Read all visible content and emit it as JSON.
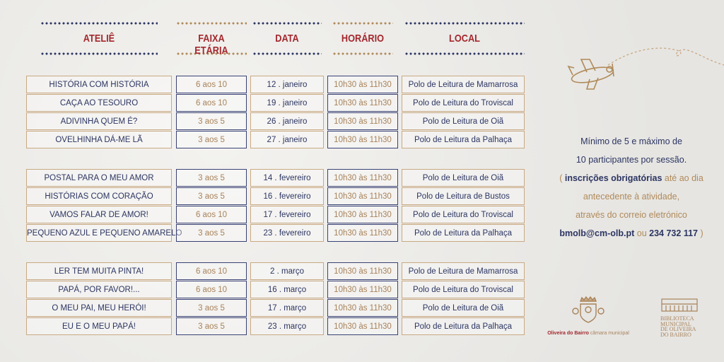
{
  "headers": [
    "ATELIÊ",
    "FAIXA ETÁRIA",
    "DATA",
    "HORÁRIO",
    "LOCAL"
  ],
  "colors": {
    "navy": "#2c3562",
    "gold": "#b08a5a",
    "red": "#a3282e"
  },
  "groups": [
    [
      [
        "HISTÓRIA COM HISTÓRIA",
        "6 aos 10",
        "12 . janeiro",
        "10h30 às 11h30",
        "Polo de Leitura de Mamarrosa"
      ],
      [
        "CAÇA AO TESOURO",
        "6 aos 10",
        "19 . janeiro",
        "10h30 às 11h30",
        "Polo de Leitura do Troviscal"
      ],
      [
        "ADIVINHA QUEM É?",
        "3 aos 5",
        "26 . janeiro",
        "10h30 às 11h30",
        "Polo de Leitura de Oiã"
      ],
      [
        "OVELHINHA DÁ-ME LÃ",
        "3 aos 5",
        "27 . janeiro",
        "10h30 às 11h30",
        "Polo de Leitura da Palhaça"
      ]
    ],
    [
      [
        "POSTAL PARA O MEU AMOR",
        "3 aos 5",
        "14 . fevereiro",
        "10h30 às 11h30",
        "Polo de Leitura de Oiã"
      ],
      [
        "HISTÓRIAS COM CORAÇÃO",
        "3 aos 5",
        "16 . fevereiro",
        "10h30 às 11h30",
        "Polo de Leitura de Bustos"
      ],
      [
        "VAMOS FALAR DE AMOR!",
        "6 aos 10",
        "17 . fevereiro",
        "10h30 às 11h30",
        "Polo de Leitura do Troviscal"
      ],
      [
        "PEQUENO AZUL E PEQUENO AMARELO",
        "3 aos 5",
        "23 . fevereiro",
        "10h30 às 11h30",
        "Polo de Leitura da Palhaça"
      ]
    ],
    [
      [
        "LER TEM MUITA PINTA!",
        "6 aos 10",
        "2 . março",
        "10h30 às 11h30",
        "Polo de Leitura de Mamarrosa"
      ],
      [
        "PAPÁ, POR FAVOR!...",
        "6 aos 10",
        "16 . março",
        "10h30 às 11h30",
        "Polo de Leitura do Troviscal"
      ],
      [
        "O MEU PAI, MEU HERÓI!",
        "3 aos 5",
        "17 . março",
        "10h30 às 11h30",
        "Polo de Leitura de Oiã"
      ],
      [
        "EU E O MEU PAPÁ!",
        "3 aos 5",
        "23 . março",
        "10h30 às 11h30",
        "Polo de Leitura da Palhaça"
      ]
    ]
  ],
  "info": {
    "line1": "Mínimo de 5 e máximo de",
    "line2": "10 participantes por sessão.",
    "open": "( ",
    "bold1": "inscrições obrigatórias",
    "rest1": " até ao dia",
    "line4": "antecedente à atividade,",
    "line5": "através do correio eletrónico",
    "email": "bmolb@cm-olb.pt",
    "ou": " ou ",
    "phone": "234 732 117",
    "close": " )"
  },
  "logos": {
    "municipality": "Oliveira do Bairro",
    "municipality_suffix": " câmara municipal",
    "library": "BIBLIOTECA MUNICIPAL DE OLIVEIRA DO BAIRRO"
  }
}
